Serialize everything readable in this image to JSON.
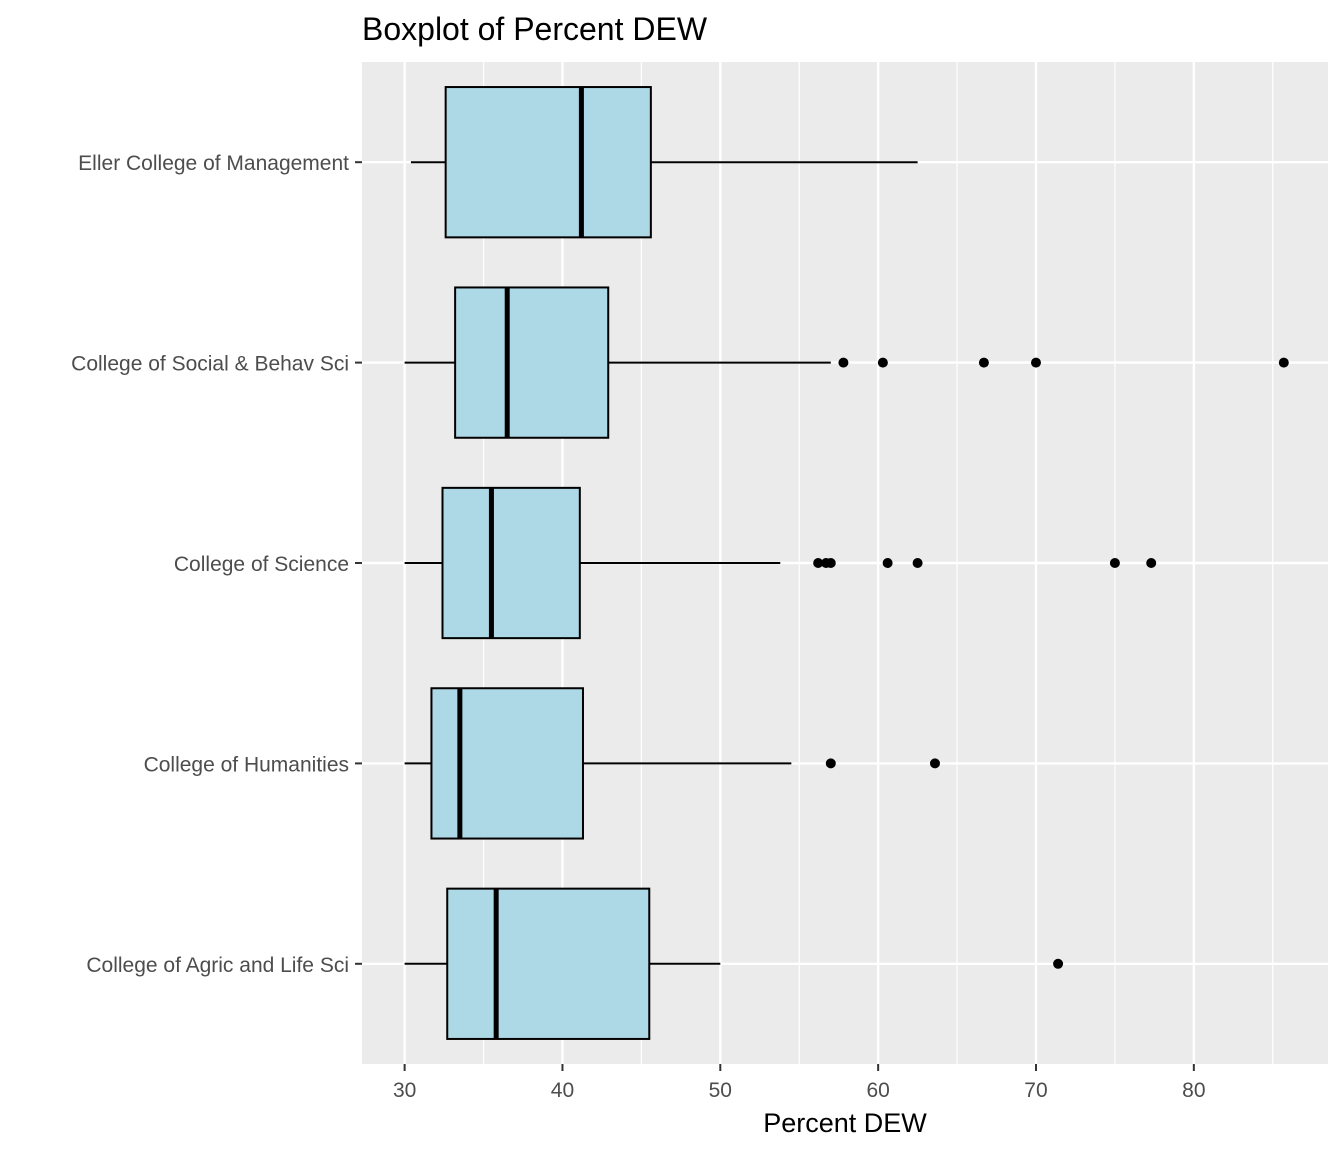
{
  "chart_data": {
    "type": "boxplot",
    "orientation": "horizontal",
    "title": "Boxplot of Percent DEW",
    "xlabel": "Percent DEW",
    "ylabel": "",
    "xlim": [
      27.3,
      88.5
    ],
    "x_ticks": [
      30,
      40,
      50,
      60,
      70,
      80
    ],
    "x_tick_labels": [
      "30",
      "40",
      "50",
      "60",
      "70",
      "80"
    ],
    "grid": true,
    "legend": "none",
    "categories": [
      "Eller College of Management",
      "College of Social & Behav Sci",
      "College of Science",
      "College of Humanities",
      "College of Agric and Life Sci"
    ],
    "boxes": [
      {
        "category": "Eller College of Management",
        "whisker_low": 30.4,
        "q1": 32.6,
        "median": 41.2,
        "q3": 45.6,
        "whisker_high": 62.5,
        "outliers": []
      },
      {
        "category": "College of Social & Behav Sci",
        "whisker_low": 30.0,
        "q1": 33.2,
        "median": 36.5,
        "q3": 42.9,
        "whisker_high": 57.0,
        "outliers": [
          57.8,
          60.3,
          66.7,
          70.0,
          85.7
        ]
      },
      {
        "category": "College of Science",
        "whisker_low": 30.0,
        "q1": 32.4,
        "median": 35.5,
        "q3": 41.1,
        "whisker_high": 53.8,
        "outliers": [
          56.2,
          56.7,
          57.0,
          60.6,
          62.5,
          75.0,
          77.3
        ]
      },
      {
        "category": "College of Humanities",
        "whisker_low": 30.0,
        "q1": 31.7,
        "median": 33.5,
        "q3": 41.3,
        "whisker_high": 54.5,
        "outliers": [
          57.0,
          63.6
        ]
      },
      {
        "category": "College of Agric and Life Sci",
        "whisker_low": 30.0,
        "q1": 32.7,
        "median": 35.8,
        "q3": 45.5,
        "whisker_high": 50.0,
        "outliers": [
          71.4
        ]
      }
    ],
    "colors": {
      "panel": "#ebebeb",
      "grid": "#ffffff",
      "box_fill": "#add8e6",
      "box_stroke": "#000000"
    }
  }
}
